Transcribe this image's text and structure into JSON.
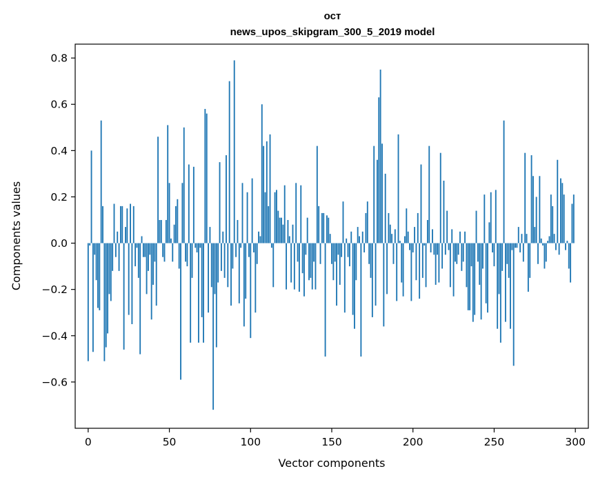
{
  "chart_data": {
    "type": "bar",
    "title": "ост",
    "subtitle": "news_upos_skipgram_300_5_2019 model",
    "xlabel": "Vector components",
    "ylabel": "Components values",
    "xlim": [
      -8,
      308
    ],
    "ylim": [
      -0.8,
      0.86
    ],
    "xticks": [
      0,
      50,
      100,
      150,
      200,
      250,
      300
    ],
    "yticks": [
      -0.6,
      -0.4,
      -0.2,
      0.0,
      0.2,
      0.4,
      0.6,
      0.8
    ],
    "ytick_labels": [
      "−0.6",
      "−0.4",
      "−0.2",
      "0.0",
      "0.2",
      "0.4",
      "0.6",
      "0.8"
    ],
    "bar_color": "#1f77b4",
    "grid": false,
    "x": "0..299 (component index)",
    "values": [
      -0.51,
      -0.01,
      0.4,
      -0.47,
      -0.05,
      -0.16,
      -0.28,
      -0.29,
      0.53,
      0.16,
      -0.51,
      -0.45,
      -0.39,
      -0.22,
      -0.25,
      -0.12,
      0.17,
      -0.06,
      0.05,
      -0.12,
      0.16,
      0.16,
      -0.46,
      0.07,
      0.15,
      -0.31,
      0.17,
      -0.35,
      0.16,
      -0.1,
      -0.02,
      -0.15,
      -0.48,
      0.03,
      -0.06,
      -0.06,
      -0.22,
      -0.12,
      -0.05,
      -0.33,
      -0.18,
      -0.08,
      -0.27,
      0.46,
      0.1,
      0.1,
      -0.06,
      -0.08,
      0.1,
      0.51,
      0.26,
      0.02,
      -0.08,
      0.08,
      0.16,
      0.19,
      -0.11,
      -0.59,
      0.26,
      0.5,
      -0.08,
      -0.1,
      0.34,
      -0.43,
      -0.15,
      0.33,
      -0.02,
      -0.04,
      -0.43,
      -0.02,
      -0.32,
      -0.43,
      0.58,
      0.56,
      -0.3,
      0.07,
      -0.19,
      -0.72,
      -0.22,
      -0.45,
      -0.17,
      0.35,
      -0.12,
      0.05,
      -0.15,
      0.38,
      -0.19,
      0.7,
      -0.27,
      -0.11,
      0.79,
      -0.06,
      0.1,
      -0.26,
      -0.02,
      0.26,
      -0.36,
      -0.24,
      0.22,
      -0.06,
      -0.41,
      0.28,
      -0.04,
      -0.3,
      -0.09,
      0.05,
      0.03,
      0.6,
      0.42,
      0.22,
      0.44,
      0.16,
      0.47,
      -0.02,
      -0.19,
      0.22,
      0.23,
      0.14,
      0.11,
      0.11,
      0.08,
      0.25,
      -0.2,
      0.1,
      0.03,
      -0.17,
      0.08,
      -0.2,
      0.26,
      -0.08,
      -0.21,
      0.25,
      -0.13,
      -0.23,
      -0.05,
      0.11,
      -0.16,
      -0.15,
      -0.2,
      -0.08,
      -0.2,
      0.42,
      0.16,
      -0.09,
      0.13,
      0.13,
      -0.49,
      0.12,
      0.11,
      0.04,
      -0.09,
      -0.16,
      -0.08,
      -0.27,
      -0.05,
      -0.18,
      -0.06,
      0.18,
      -0.3,
      0.02,
      -0.06,
      -0.1,
      0.05,
      -0.31,
      -0.37,
      -0.16,
      0.07,
      0.03,
      -0.49,
      0.05,
      -0.04,
      0.13,
      0.18,
      -0.09,
      -0.15,
      -0.32,
      0.42,
      -0.27,
      0.36,
      0.63,
      0.75,
      0.43,
      -0.36,
      0.3,
      -0.22,
      0.13,
      0.08,
      0.04,
      -0.09,
      0.06,
      -0.25,
      0.47,
      0.01,
      -0.17,
      -0.23,
      0.03,
      0.15,
      0.05,
      -0.03,
      -0.25,
      -0.04,
      0.07,
      -0.16,
      0.13,
      -0.24,
      0.34,
      -0.15,
      -0.01,
      -0.19,
      0.1,
      0.42,
      -0.04,
      0.06,
      -0.05,
      -0.18,
      -0.05,
      -0.17,
      0.39,
      -0.11,
      0.27,
      -0.05,
      0.14,
      -0.03,
      -0.19,
      0.06,
      -0.23,
      -0.08,
      -0.09,
      -0.05,
      0.05,
      -0.12,
      -0.08,
      0.05,
      -0.19,
      -0.29,
      -0.29,
      -0.1,
      -0.34,
      -0.31,
      0.14,
      -0.08,
      -0.18,
      -0.33,
      -0.11,
      0.21,
      -0.26,
      -0.3,
      0.09,
      0.22,
      -0.04,
      -0.1,
      0.23,
      -0.37,
      -0.22,
      -0.43,
      -0.12,
      0.53,
      -0.34,
      -0.09,
      -0.15,
      -0.37,
      -0.03,
      -0.53,
      -0.02,
      -0.02,
      0.07,
      -0.04,
      0.04,
      -0.08,
      0.39,
      0.04,
      -0.21,
      -0.15,
      0.38,
      0.29,
      0.07,
      0.2,
      -0.09,
      0.29,
      0.02,
      -0.01,
      -0.11,
      -0.08,
      0.01,
      0.03,
      0.21,
      0.16,
      0.04,
      -0.03,
      0.36,
      -0.05,
      0.28,
      0.26,
      0.21,
      -0.03,
      0.01,
      -0.11,
      -0.17,
      0.17,
      0.21
    ]
  }
}
